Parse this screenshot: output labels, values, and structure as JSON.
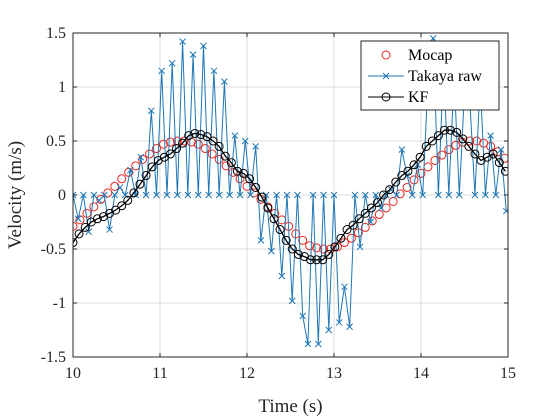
{
  "chart_data": {
    "type": "line",
    "xlabel": "Time (s)",
    "ylabel": "Velocity (m/s)",
    "xlim": [
      10,
      15
    ],
    "ylim": [
      -1.5,
      1.5
    ],
    "xticks": [
      10,
      11,
      12,
      13,
      14,
      15
    ],
    "yticks": [
      -1.5,
      -1,
      -0.5,
      0,
      0.5,
      1,
      1.5
    ],
    "xtick_labels": [
      "10",
      "11",
      "12",
      "13",
      "14",
      "15"
    ],
    "ytick_labels": [
      "-1.5",
      "-1",
      "-0.5",
      "0",
      "0.5",
      "1",
      "1.5"
    ],
    "grid": true,
    "legend_position": "top-right",
    "colors": {
      "mocap": "#e8261e",
      "raw": "#1f77b4",
      "kf": "#000000"
    },
    "series": [
      {
        "name": "Mocap",
        "marker": "circle",
        "x": [
          10.0,
          10.08,
          10.16,
          10.24,
          10.32,
          10.4,
          10.48,
          10.56,
          10.64,
          10.72,
          10.8,
          10.88,
          10.96,
          11.04,
          11.12,
          11.2,
          11.28,
          11.36,
          11.44,
          11.52,
          11.6,
          11.68,
          11.76,
          11.84,
          11.92,
          12.0,
          12.08,
          12.16,
          12.24,
          12.32,
          12.4,
          12.48,
          12.56,
          12.64,
          12.72,
          12.8,
          12.88,
          12.96,
          13.04,
          13.12,
          13.2,
          13.28,
          13.36,
          13.44,
          13.52,
          13.6,
          13.68,
          13.76,
          13.84,
          13.92,
          14.0,
          14.08,
          14.16,
          14.24,
          14.32,
          14.4,
          14.48,
          14.56,
          14.64,
          14.72,
          14.8,
          14.88,
          14.96
        ],
        "y": [
          -0.29,
          -0.23,
          -0.17,
          -0.11,
          -0.04,
          0.02,
          0.08,
          0.15,
          0.21,
          0.27,
          0.33,
          0.38,
          0.43,
          0.47,
          0.49,
          0.5,
          0.5,
          0.49,
          0.47,
          0.43,
          0.38,
          0.33,
          0.27,
          0.21,
          0.15,
          0.08,
          0.02,
          -0.04,
          -0.11,
          -0.17,
          -0.23,
          -0.29,
          -0.36,
          -0.42,
          -0.47,
          -0.49,
          -0.5,
          -0.5,
          -0.48,
          -0.44,
          -0.4,
          -0.35,
          -0.3,
          -0.24,
          -0.18,
          -0.12,
          -0.06,
          0.01,
          0.07,
          0.14,
          0.2,
          0.26,
          0.32,
          0.37,
          0.42,
          0.46,
          0.49,
          0.5,
          0.5,
          0.48,
          0.45,
          0.4,
          0.34
        ]
      },
      {
        "name": "Takaya raw",
        "marker": "x",
        "x": [
          10.0,
          10.06,
          10.12,
          10.18,
          10.24,
          10.3,
          10.36,
          10.42,
          10.48,
          10.54,
          10.6,
          10.66,
          10.72,
          10.78,
          10.84,
          10.9,
          10.96,
          11.02,
          11.08,
          11.14,
          11.2,
          11.26,
          11.32,
          11.38,
          11.44,
          11.5,
          11.56,
          11.62,
          11.68,
          11.74,
          11.8,
          11.86,
          11.92,
          11.98,
          12.04,
          12.1,
          12.16,
          12.22,
          12.28,
          12.34,
          12.4,
          12.46,
          12.52,
          12.58,
          12.64,
          12.7,
          12.76,
          12.82,
          12.88,
          12.94,
          13.0,
          13.06,
          13.12,
          13.18,
          13.24,
          13.3,
          13.36,
          13.42,
          13.48,
          13.54,
          13.6,
          13.66,
          13.72,
          13.78,
          13.84,
          13.9,
          13.96,
          14.02,
          14.08,
          14.14,
          14.2,
          14.26,
          14.32,
          14.38,
          14.44,
          14.5,
          14.56,
          14.62,
          14.68,
          14.74,
          14.8,
          14.86,
          14.92,
          14.98
        ],
        "y": [
          0,
          -0.22,
          0,
          -0.34,
          0,
          -0.05,
          0,
          -0.32,
          0,
          0.07,
          0,
          0.23,
          0,
          0.35,
          0,
          0.78,
          0,
          1.15,
          0,
          1.22,
          0,
          1.42,
          0,
          1.3,
          0,
          1.38,
          0,
          1.15,
          0,
          1.05,
          0,
          0.55,
          0,
          0.5,
          0,
          0.45,
          -0.42,
          0,
          -0.52,
          0,
          -0.75,
          0,
          -0.98,
          0,
          -1.12,
          -1.38,
          0,
          -1.38,
          0,
          -1.25,
          0,
          -1.18,
          -0.85,
          -1.22,
          0,
          -0.48,
          0,
          -0.25,
          0,
          -0.12,
          0,
          0.05,
          0,
          0.42,
          0.18,
          0,
          0.28,
          0,
          1.05,
          1.45,
          0,
          1.22,
          0,
          1.1,
          0,
          0.95,
          0.9,
          0,
          1.05,
          0,
          0.55,
          0,
          0.42,
          -0.15
        ]
      },
      {
        "name": "KF",
        "marker": "circle",
        "x": [
          10.0,
          10.07,
          10.14,
          10.21,
          10.28,
          10.35,
          10.42,
          10.49,
          10.56,
          10.63,
          10.7,
          10.77,
          10.84,
          10.91,
          10.98,
          11.05,
          11.12,
          11.19,
          11.26,
          11.33,
          11.4,
          11.47,
          11.54,
          11.61,
          11.68,
          11.75,
          11.82,
          11.89,
          11.96,
          12.03,
          12.1,
          12.17,
          12.24,
          12.31,
          12.38,
          12.45,
          12.52,
          12.59,
          12.66,
          12.73,
          12.8,
          12.87,
          12.94,
          13.01,
          13.08,
          13.15,
          13.22,
          13.29,
          13.36,
          13.43,
          13.5,
          13.57,
          13.64,
          13.71,
          13.78,
          13.85,
          13.92,
          13.99,
          14.06,
          14.13,
          14.2,
          14.27,
          14.34,
          14.41,
          14.48,
          14.55,
          14.62,
          14.69,
          14.76,
          14.83,
          14.9,
          14.97
        ],
        "y": [
          -0.44,
          -0.36,
          -0.3,
          -0.25,
          -0.22,
          -0.2,
          -0.17,
          -0.14,
          -0.1,
          -0.05,
          0.02,
          0.1,
          0.18,
          0.26,
          0.32,
          0.35,
          0.38,
          0.43,
          0.48,
          0.55,
          0.57,
          0.56,
          0.54,
          0.5,
          0.45,
          0.36,
          0.3,
          0.22,
          0.2,
          0.15,
          0.07,
          -0.02,
          -0.12,
          -0.22,
          -0.32,
          -0.42,
          -0.5,
          -0.55,
          -0.57,
          -0.6,
          -0.6,
          -0.6,
          -0.55,
          -0.48,
          -0.4,
          -0.32,
          -0.28,
          -0.22,
          -0.17,
          -0.12,
          -0.07,
          0.0,
          0.05,
          0.12,
          0.18,
          0.22,
          0.28,
          0.35,
          0.45,
          0.5,
          0.55,
          0.6,
          0.6,
          0.58,
          0.52,
          0.45,
          0.38,
          0.32,
          0.35,
          0.38,
          0.3,
          0.22
        ]
      }
    ]
  }
}
